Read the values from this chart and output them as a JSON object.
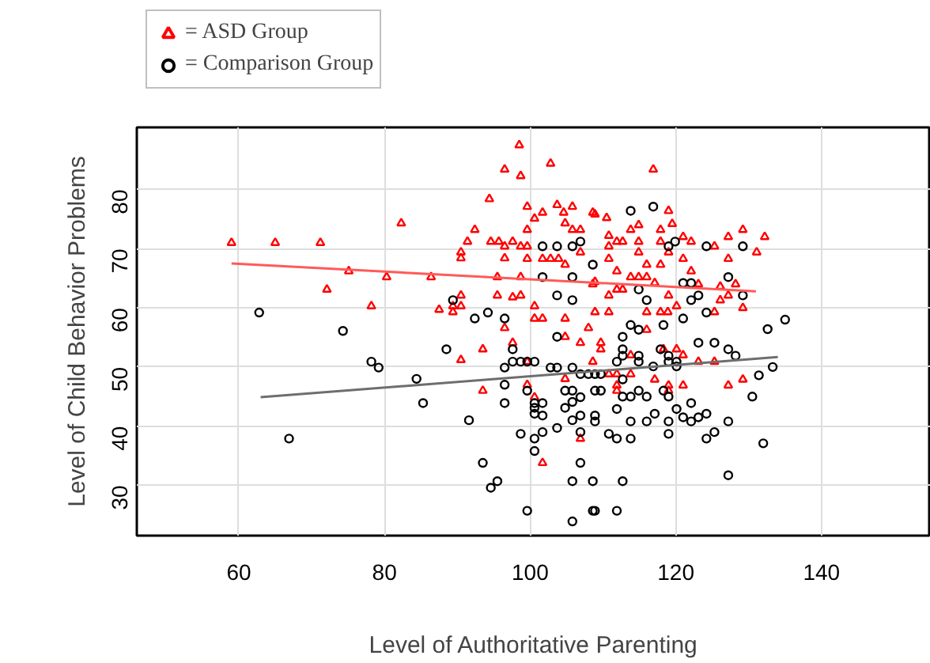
{
  "chart_data": {
    "type": "scatter",
    "xlabel": "Level of Authoritative Parenting",
    "ylabel": "Level of Child Behavior Problems",
    "xlim": [
      46,
      155
    ],
    "ylim": [
      21.5,
      90.5
    ],
    "xticks": [
      60,
      80,
      100,
      120,
      140
    ],
    "yticks": [
      30,
      40,
      50,
      60,
      70,
      80
    ],
    "grid": true,
    "legend": "top left",
    "series": [
      {
        "name": "= ASD Group",
        "marker": "triangle",
        "color": "#ff0000",
        "x": [
          59,
          65,
          71.2,
          82.3,
          75.1,
          72.1,
          80.3,
          78.2,
          86.4,
          87.5,
          98.5,
          96.5,
          98.7,
          102.8,
          94.4,
          99.6,
          103.7,
          105.8,
          101.7,
          104.6,
          100.6,
          108.9,
          92.4,
          99.6,
          104.8,
          105.8,
          106.9,
          91.4,
          94.6,
          95.7,
          97.6,
          90.5,
          90.5,
          96.5,
          96.5,
          98.7,
          99.6,
          99.6,
          101.7,
          102.8,
          103.9,
          106.9,
          104.8,
          95.5,
          98.7,
          108.9,
          90.5,
          95.5,
          97.6,
          98.7,
          89.4,
          90.5,
          89.4,
          100.6,
          101.7,
          104.8,
          100.6,
          96.5,
          108,
          108.9,
          93.5,
          90.5,
          97.6,
          99.6,
          104.8,
          106.9,
          104.8,
          93.5,
          99.6,
          100.6,
          106.9,
          101.7,
          116.9,
          108.6,
          110.5,
          119,
          114.9,
          113.8,
          117.9,
          119.5,
          129.2,
          110.8,
          111.9,
          112.7,
          114.9,
          117.9,
          121,
          122.1,
          127.2,
          125.3,
          110.8,
          114.9,
          119,
          121,
          127.2,
          110.8,
          116,
          117.9,
          111.9,
          122.1,
          113.8,
          114.9,
          116,
          117.1,
          123.1,
          108.6,
          128.2,
          111.9,
          112.7,
          126.1,
          110.8,
          119,
          127.2,
          120.1,
          110.8,
          116,
          117.9,
          118.9,
          125.3,
          116,
          126.1,
          109.7,
          109.7,
          108.6,
          113.8,
          118.3,
          120.1,
          121,
          123.1,
          125.3,
          110.8,
          111.9,
          113.8,
          111.9,
          111.9,
          117.1,
          119,
          119,
          121,
          127.2,
          129.2,
          132.2,
          131.1,
          129.2
        ],
        "values": [
          71,
          71,
          71,
          74.3,
          66.2,
          63.1,
          65.2,
          60.3,
          65.2,
          59.7,
          87.5,
          83.4,
          82.3,
          84.4,
          78.4,
          77.1,
          77.4,
          77.1,
          76.1,
          76.1,
          75.1,
          75.8,
          73.2,
          73.2,
          74.3,
          73.2,
          73.2,
          71.2,
          71.2,
          71.2,
          71.2,
          69.4,
          68.4,
          70.4,
          68.4,
          70.4,
          70.4,
          68.3,
          68.3,
          68.3,
          68.3,
          69.4,
          67.3,
          65.2,
          65.2,
          64.4,
          62.1,
          62.1,
          61.8,
          62.1,
          60.3,
          60.3,
          59.3,
          60.3,
          58.2,
          58.2,
          58.2,
          56.6,
          56.6,
          59.3,
          53,
          51.2,
          54.1,
          50.9,
          55.1,
          54.1,
          48,
          46,
          47,
          44.9,
          37.9,
          33.8,
          83.4,
          76.1,
          75.2,
          76.4,
          74,
          73.2,
          73.2,
          74.2,
          73.2,
          72.2,
          71.2,
          71.2,
          71.2,
          71.2,
          72,
          71.2,
          72,
          70.4,
          70.4,
          69.4,
          69.4,
          68.3,
          68.3,
          68.3,
          67.3,
          67.3,
          66.2,
          66.2,
          65.2,
          65.2,
          65.2,
          64.2,
          64,
          64,
          64,
          63.1,
          63.1,
          63.6,
          62.1,
          62.1,
          62.1,
          60.3,
          59.3,
          59.3,
          59.3,
          59.3,
          59.3,
          56.3,
          61.3,
          54.1,
          53,
          50.9,
          52,
          53,
          53,
          52,
          50.9,
          50.9,
          48.8,
          48.8,
          48.8,
          46.9,
          46,
          47.9,
          46.9,
          46,
          46.9,
          46.9,
          47.9,
          72,
          69.4,
          60
        ]
      },
      {
        "name": "= Comparison Group",
        "marker": "circle",
        "color": "#000000",
        "x": [
          62.8,
          74.3,
          78.2,
          79.2,
          84.4,
          85.3,
          66.9,
          88.5,
          101.7,
          103.7,
          105.8,
          106.9,
          101.7,
          105.8,
          103.7,
          105.8,
          89.4,
          94.2,
          92.4,
          96.5,
          97.6,
          103.7,
          97.6,
          98.7,
          99.6,
          100.6,
          96.5,
          102.8,
          103.7,
          105.8,
          106.9,
          108,
          108.9,
          96.5,
          104.8,
          105.8,
          106.9,
          108.9,
          99.6,
          96.5,
          100.6,
          100.6,
          100.6,
          101.7,
          101.7,
          104.8,
          105.8,
          105.8,
          106.9,
          108.9,
          108.9,
          103.7,
          91.6,
          98.7,
          100.6,
          101.7,
          100.6,
          106.9,
          93.5,
          106.9,
          95.5,
          94.6,
          105.8,
          99.6,
          108.9,
          105.8,
          113.8,
          116.9,
          119.9,
          119,
          124.2,
          129.2,
          121,
          122.1,
          127.2,
          129.2,
          114.9,
          116,
          122.1,
          123.1,
          124.2,
          121,
          113.8,
          114.9,
          118.3,
          108.6,
          112.7,
          112.7,
          112.7,
          114.9,
          111.9,
          114.9,
          117.9,
          119,
          119,
          120.1,
          123.1,
          125.3,
          127.2,
          128.2,
          116.9,
          120.1,
          109.7,
          109.7,
          112.7,
          112.7,
          113.8,
          114.9,
          116,
          118.3,
          119,
          111.9,
          117.1,
          120.1,
          122.1,
          113.8,
          116,
          119,
          121,
          122.1,
          123.1,
          124.2,
          127.2,
          130.5,
          110.8,
          111.9,
          113.8,
          119,
          124.2,
          125.3,
          127.2,
          108.6,
          112.7,
          108.6,
          111.9,
          132.6,
          135,
          133.3,
          132,
          131.4
        ],
        "values": [
          59.2,
          56.1,
          50.9,
          49.9,
          48,
          43.9,
          37.9,
          53,
          70.4,
          70.4,
          70.4,
          71.2,
          65.2,
          65.2,
          62.1,
          61.3,
          61.3,
          59.2,
          58.2,
          58.2,
          53,
          55.1,
          50.9,
          50.9,
          50.9,
          50.9,
          49.9,
          49.9,
          49.9,
          49.9,
          48.8,
          48.8,
          48.8,
          47,
          46,
          46,
          44.9,
          46,
          46,
          43.9,
          43.9,
          43.1,
          42.1,
          43.9,
          41.8,
          43.1,
          44.1,
          41,
          41.8,
          41.8,
          40.8,
          39.7,
          41,
          38.7,
          37.9,
          39,
          35.8,
          39,
          33.8,
          33.8,
          30.7,
          29.6,
          30.7,
          25.7,
          25.7,
          23.9,
          76.4,
          77.1,
          71.2,
          70.4,
          70.4,
          70.4,
          64.2,
          64.2,
          65.2,
          62.1,
          63.1,
          61.3,
          61.3,
          62.1,
          59.2,
          58.2,
          57.1,
          56.3,
          57.1,
          67.3,
          55.1,
          53,
          51.9,
          51.9,
          50.9,
          50.9,
          53,
          51.9,
          50.9,
          50.9,
          54.1,
          54.1,
          53,
          51.9,
          50.1,
          50.1,
          48.8,
          46,
          47.9,
          45,
          45,
          46,
          45,
          46,
          45,
          42.9,
          42.1,
          42.9,
          43.9,
          40.8,
          40.8,
          40.8,
          41.5,
          40.8,
          41.5,
          42.1,
          40.8,
          45,
          38.7,
          37.9,
          37.9,
          38.7,
          37.9,
          39,
          31.7,
          30.7,
          30.7,
          25.7,
          25.7,
          56.4,
          58,
          50,
          37.1,
          48.6
        ]
      },
      {
        "type": "line",
        "color": "#ff5a5a",
        "x": [
          59,
          131
        ],
        "values": [
          67.5,
          62.8
        ]
      },
      {
        "type": "line",
        "color": "#6e6e6e",
        "x": [
          63,
          134
        ],
        "values": [
          44.9,
          51.7
        ]
      }
    ]
  }
}
